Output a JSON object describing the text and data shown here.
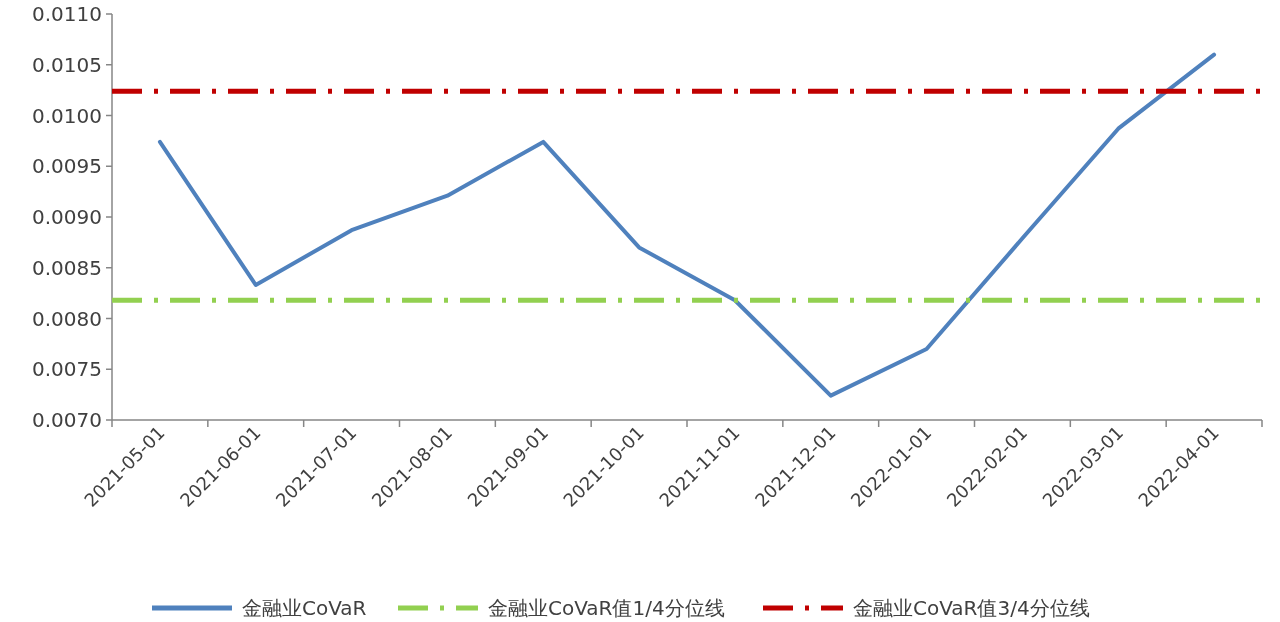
{
  "chart_data": {
    "type": "line",
    "categories": [
      "2021-05-01",
      "2021-06-01",
      "2021-07-01",
      "2021-08-01",
      "2021-09-01",
      "2021-10-01",
      "2021-11-01",
      "2021-12-01",
      "2022-01-01",
      "2022-02-01",
      "2022-03-01",
      "2022-04-01"
    ],
    "series": [
      {
        "name": "金融业CoVaR",
        "color": "#4f81bd",
        "values": [
          0.00974,
          0.00833,
          0.00887,
          0.00921,
          0.00974,
          0.0087,
          0.00818,
          0.00724,
          0.0077,
          0.00879,
          0.00987,
          0.0106
        ]
      }
    ],
    "ref_lines": [
      {
        "axis": "y",
        "value": 0.00818,
        "label": "金融业CoVaR值1/4分位线",
        "color": "#92d050",
        "line_style": "dashed"
      },
      {
        "axis": "y",
        "value": 0.01024,
        "label": "金融业CoVaR值3/4分位线",
        "color": "#c00000",
        "line_style": "dashed"
      }
    ],
    "ylim": [
      0.007,
      0.011
    ],
    "yticks": [
      {
        "value": 0.007,
        "label": "0.0070"
      },
      {
        "value": 0.0075,
        "label": "0.0075"
      },
      {
        "value": 0.008,
        "label": "0.0080"
      },
      {
        "value": 0.0085,
        "label": "0.0085"
      },
      {
        "value": 0.009,
        "label": "0.0090"
      },
      {
        "value": 0.0095,
        "label": "0.0095"
      },
      {
        "value": 0.01,
        "label": "0.0100"
      },
      {
        "value": 0.0105,
        "label": "0.0105"
      },
      {
        "value": 0.011,
        "label": "0.0110"
      }
    ],
    "grid": false,
    "legend": "bottom",
    "marker": "none",
    "line_style": "solid"
  }
}
